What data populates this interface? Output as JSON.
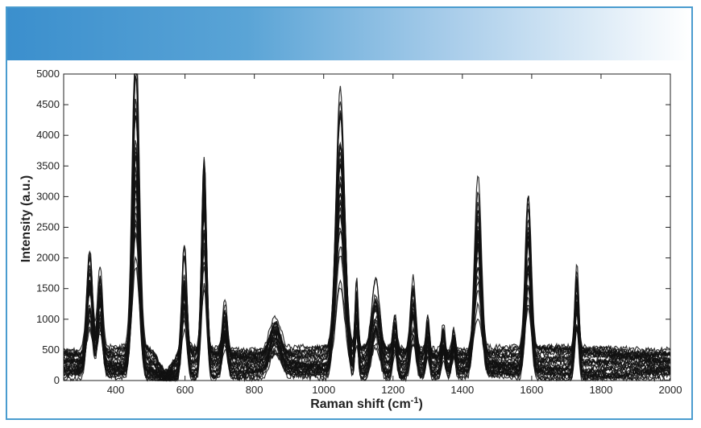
{
  "theme": {
    "banner_start": "#3b8fcd",
    "banner_end": "#ffffff",
    "frame_border": "#4a9ccf",
    "line_color": "#111111"
  },
  "chart_data": {
    "type": "line",
    "title": "",
    "xlabel": "Raman shift (cm",
    "xlabel_sup": "-1",
    "xlabel_close": ")",
    "ylabel": "Intensity (a.u.)",
    "xlim": [
      250,
      2000
    ],
    "ylim": [
      0,
      5000
    ],
    "xticks": [
      400,
      600,
      800,
      1000,
      1200,
      1400,
      1600,
      1800,
      2000
    ],
    "yticks": [
      0,
      500,
      1000,
      1500,
      2000,
      2500,
      3000,
      3500,
      4000,
      4500,
      5000
    ],
    "grid": false,
    "legend": "none",
    "series_count": 30,
    "peaks": [
      {
        "x": 325,
        "y": 2000
      },
      {
        "x": 355,
        "y": 1800
      },
      {
        "x": 458,
        "y": 4700
      },
      {
        "x": 598,
        "y": 2000
      },
      {
        "x": 655,
        "y": 3900
      },
      {
        "x": 715,
        "y": 1230
      },
      {
        "x": 860,
        "y": 1000
      },
      {
        "x": 1048,
        "y": 4200
      },
      {
        "x": 1095,
        "y": 1550
      },
      {
        "x": 1150,
        "y": 1450
      },
      {
        "x": 1205,
        "y": 1050
      },
      {
        "x": 1258,
        "y": 1480
      },
      {
        "x": 1300,
        "y": 1000
      },
      {
        "x": 1345,
        "y": 900
      },
      {
        "x": 1375,
        "y": 850
      },
      {
        "x": 1445,
        "y": 2950
      },
      {
        "x": 1590,
        "y": 2850
      },
      {
        "x": 1730,
        "y": 1780
      }
    ]
  }
}
